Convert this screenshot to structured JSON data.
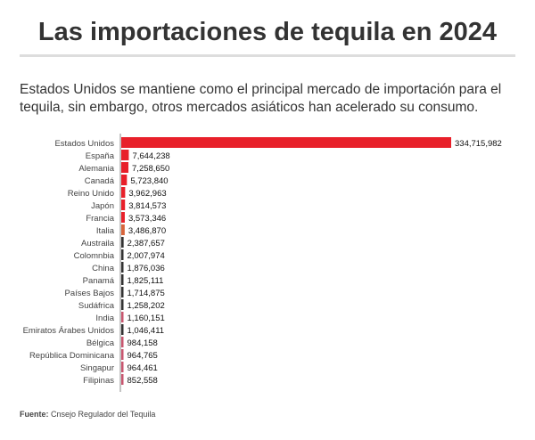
{
  "title": "Las importaciones de tequila en 2024",
  "subtitle": "Estados Unidos se mantiene como el principal mercado de importación para el tequila, sin embargo, otros mercados asiáticos han acelerado su consumo.",
  "source": {
    "label": "Fuente:",
    "text": " Cnsejo Regulador del Tequila"
  },
  "chart_data": {
    "type": "bar",
    "orientation": "horizontal",
    "categories": [
      "Estados Unidos",
      "España",
      "Alemania",
      "Canadá",
      "Reino Unido",
      "Japón",
      "Francia",
      "Italia",
      "Austraila",
      "Colomnbia",
      "China",
      "Panamá",
      "Países Bajos",
      "Sudáfrica",
      "India",
      "Emiratos Árabes Unidos",
      "Bélgica",
      "República Dominicana",
      "Singapur",
      "Filipinas"
    ],
    "values": [
      334715982,
      7644238,
      7258650,
      5723840,
      3962963,
      3814573,
      3573346,
      3486870,
      2387657,
      2007974,
      1876036,
      1825111,
      1714875,
      1258202,
      1160151,
      1046411,
      984158,
      964765,
      964461,
      852558
    ],
    "labels": [
      "334,715,982",
      "7,644,238",
      "7,258,650",
      "5,723,840",
      "3,962,963",
      "3,814,573",
      "3,573,346",
      "3,486,870",
      "2,387,657",
      "2,007,974",
      "1,876,036",
      "1,825,111",
      "1,714,875",
      "1,258,202",
      "1,160,151",
      "1,046,411",
      "984,158",
      "964,765",
      "964,461",
      "852,558"
    ],
    "colors": [
      "#e8202a",
      "#e8202a",
      "#e8202a",
      "#e8202a",
      "#e8202a",
      "#e8202a",
      "#e8202a",
      "#d8653c",
      "#333333",
      "#333333",
      "#333333",
      "#333333",
      "#333333",
      "#333333",
      "#c9566f",
      "#333333",
      "#c9566f",
      "#c9566f",
      "#c9566f",
      "#c9566f"
    ]
  }
}
